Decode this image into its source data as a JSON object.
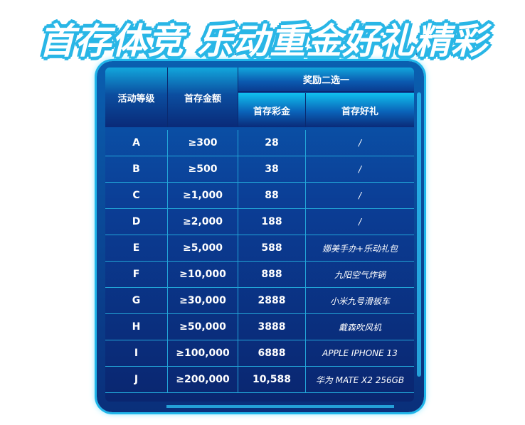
{
  "title": "首存体竞 乐动重金好礼精彩",
  "table": {
    "headers": {
      "level": "活动等级",
      "deposit": "首存金额",
      "group": "奖励二选一",
      "bonus": "首存彩金",
      "gift": "首存好礼"
    },
    "rows": [
      {
        "level": "A",
        "deposit": "≥300",
        "bonus": "28",
        "gift": "/"
      },
      {
        "level": "B",
        "deposit": "≥500",
        "bonus": "38",
        "gift": "/"
      },
      {
        "level": "C",
        "deposit": "≥1,000",
        "bonus": "88",
        "gift": "/"
      },
      {
        "level": "D",
        "deposit": "≥2,000",
        "bonus": "188",
        "gift": "/"
      },
      {
        "level": "E",
        "deposit": "≥5,000",
        "bonus": "588",
        "gift": "娜美手办+乐动礼包"
      },
      {
        "level": "F",
        "deposit": "≥10,000",
        "bonus": "888",
        "gift": "九阳空气炸锅"
      },
      {
        "level": "G",
        "deposit": "≥30,000",
        "bonus": "2888",
        "gift": "小米九号滑板车"
      },
      {
        "level": "H",
        "deposit": "≥50,000",
        "bonus": "3888",
        "gift": "戴森吹风机"
      },
      {
        "level": "I",
        "deposit": "≥100,000",
        "bonus": "6888",
        "gift": "APPLE IPHONE 13"
      },
      {
        "level": "J",
        "deposit": "≥200,000",
        "bonus": "10,588",
        "gift": "华为 MATE X2 256GB"
      }
    ]
  },
  "colors": {
    "accent": "#1fb6ea",
    "panel": "#0b3e96"
  }
}
